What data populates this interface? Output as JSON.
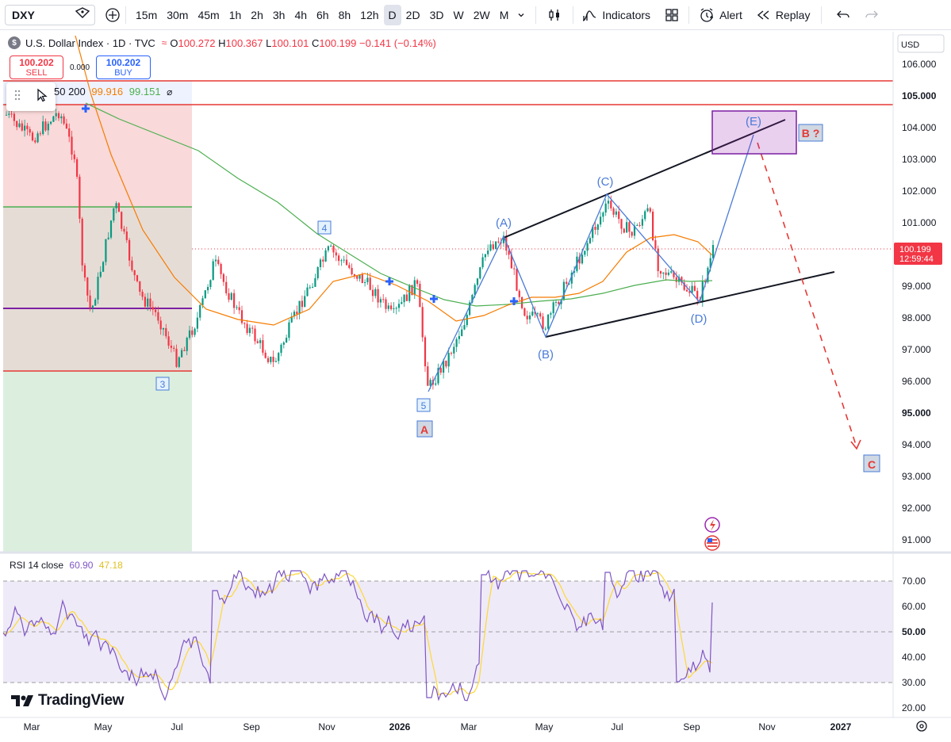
{
  "toolbar": {
    "symbol": "DXY",
    "timeframes": [
      "15m",
      "30m",
      "45m",
      "1h",
      "2h",
      "3h",
      "4h",
      "6h",
      "8h",
      "12h",
      "D",
      "2D",
      "3D",
      "W",
      "2W",
      "M"
    ],
    "active_timeframe": "D",
    "indicators_label": "Indicators",
    "alert_label": "Alert",
    "replay_label": "Replay"
  },
  "legend": {
    "title": "U.S. Dollar Index · 1D · TVC",
    "open_label": "O",
    "open": "100.272",
    "high_label": "H",
    "high": "100.367",
    "low_label": "L",
    "low": "100.101",
    "close_label": "C",
    "close": "100.199",
    "change": "−0.141 (−0.14%)"
  },
  "trade": {
    "sell_price": "100.202",
    "sell_label": "SELL",
    "spread": "0.000",
    "buy_price": "100.202",
    "buy_label": "BUY"
  },
  "ma_legend": {
    "periods": "50 200",
    "ma50": "99.916",
    "ma200": "99.151"
  },
  "price_axis": {
    "currency": "USD",
    "ticks": [
      "106.000",
      "105.000",
      "104.000",
      "103.000",
      "102.000",
      "101.000",
      "100.000",
      "99.000",
      "98.000",
      "97.000",
      "96.000",
      "95.000",
      "94.000",
      "93.000",
      "92.000",
      "91.000"
    ],
    "last_price": "100.199",
    "countdown": "12:59:44"
  },
  "rsi": {
    "label": "RSI 14 close",
    "value": "60.90",
    "ma_value": "47.18",
    "ticks": [
      "70.00",
      "60.00",
      "50.00",
      "40.00",
      "30.00",
      "20.00"
    ]
  },
  "time_axis": {
    "labels": [
      "Mar",
      "May",
      "Jul",
      "Sep",
      "Nov",
      "2026",
      "Mar",
      "May",
      "Jul",
      "Sep",
      "Nov",
      "2027"
    ]
  },
  "wave_labels": {
    "A": "(A)",
    "B": "(B)",
    "C": "(C)",
    "D": "(D)",
    "E": "(E)",
    "box_3": "3",
    "box_4": "4",
    "box_5": "5",
    "box_A": "A",
    "box_B": "B ?",
    "box_C": "C"
  },
  "brand": {
    "logo_text": "TradingView"
  },
  "colors": {
    "up": "#089981",
    "down": "#f23645",
    "accent": "#2962ff",
    "ma50": "#f57c00",
    "ma200": "#4caf50",
    "rsi": "#7e57c2",
    "rsi_ma": "#fdd835",
    "wave": "#4a7bd8"
  }
}
